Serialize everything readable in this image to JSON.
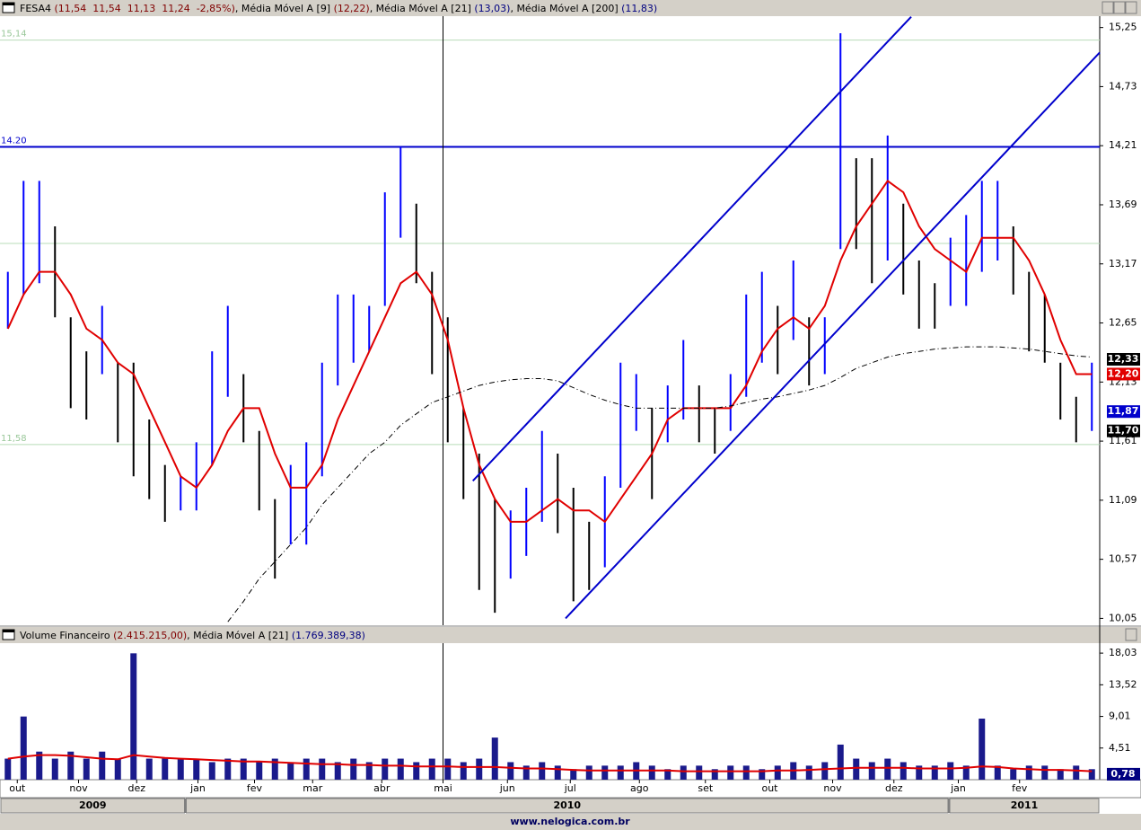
{
  "chart_data": [
    {
      "type": "ohlc",
      "header": [
        {
          "text": "FESA4 ",
          "color": "#000000"
        },
        {
          "text": "(11,54  11,54  11,13  11,24  -2,85%)",
          "color": "#800000"
        },
        {
          "text": ", Média Móvel A [9] ",
          "color": "#000000"
        },
        {
          "text": "(12,22)",
          "color": "#800000"
        },
        {
          "text": ", Média Móvel A [21] ",
          "color": "#000000"
        },
        {
          "text": "(13,03)",
          "color": "#000080"
        },
        {
          "text": ", Média Móvel A [200] ",
          "color": "#000000"
        },
        {
          "text": "(11,83)",
          "color": "#000080"
        }
      ],
      "xlim": [
        0,
        70
      ],
      "ylim": [
        9.99,
        15.35
      ],
      "yticks": [
        {
          "value": 10.05,
          "label": "10,05"
        },
        {
          "value": 10.57,
          "label": "10,57"
        },
        {
          "value": 11.09,
          "label": "11,09"
        },
        {
          "value": 11.61,
          "label": "11,61"
        },
        {
          "value": 12.13,
          "label": "12,13"
        },
        {
          "value": 12.65,
          "label": "12,65"
        },
        {
          "value": 13.17,
          "label": "13,17"
        },
        {
          "value": 13.69,
          "label": "13,69"
        },
        {
          "value": 14.21,
          "label": "14,21"
        },
        {
          "value": 14.73,
          "label": "14,73"
        },
        {
          "value": 15.25,
          "label": "15,25"
        }
      ],
      "high": [
        13.1,
        13.9,
        13.9,
        13.5,
        12.7,
        12.4,
        12.8,
        12.3,
        12.3,
        11.8,
        11.4,
        11.3,
        11.6,
        12.4,
        12.8,
        12.2,
        11.7,
        11.1,
        11.4,
        11.6,
        12.3,
        12.9,
        12.9,
        12.8,
        13.8,
        14.2,
        13.7,
        13.1,
        12.7,
        11.9,
        11.5,
        11.1,
        11.0,
        11.2,
        11.7,
        11.5,
        11.2,
        10.9,
        11.3,
        12.3,
        12.2,
        11.9,
        12.1,
        12.5,
        12.1,
        11.9,
        12.2,
        12.9,
        13.1,
        12.8,
        13.2,
        12.7,
        12.7,
        15.2,
        14.1,
        14.1,
        14.3,
        13.7,
        13.2,
        13.0,
        13.4,
        13.6,
        13.9,
        13.9,
        13.5,
        13.1,
        12.9,
        12.3,
        12.0,
        12.3
      ],
      "low": [
        12.6,
        12.9,
        13.0,
        12.7,
        11.9,
        11.8,
        12.2,
        11.6,
        11.3,
        11.1,
        10.9,
        11.0,
        11.0,
        11.4,
        12.0,
        11.6,
        11.0,
        10.4,
        10.7,
        10.7,
        11.3,
        12.1,
        12.3,
        12.4,
        12.8,
        13.4,
        13.0,
        12.2,
        11.6,
        11.1,
        10.3,
        10.1,
        10.4,
        10.6,
        10.9,
        10.8,
        10.2,
        10.3,
        10.5,
        11.2,
        11.7,
        11.1,
        11.6,
        11.8,
        11.6,
        11.5,
        11.7,
        12.0,
        12.3,
        12.2,
        12.5,
        12.1,
        12.2,
        13.3,
        13.3,
        13.0,
        13.2,
        12.9,
        12.6,
        12.6,
        12.8,
        12.8,
        13.1,
        13.2,
        12.9,
        12.4,
        12.3,
        11.8,
        11.6,
        11.7
      ],
      "up_color": "#0000ff",
      "down_color": "#000000",
      "series": [
        {
          "color": "#e00000",
          "values": [
            12.6,
            12.9,
            13.1,
            13.1,
            12.9,
            12.6,
            12.5,
            12.3,
            12.2,
            11.9,
            11.6,
            11.3,
            11.2,
            11.4,
            11.7,
            11.9,
            11.9,
            11.5,
            11.2,
            11.2,
            11.4,
            11.8,
            12.1,
            12.4,
            12.7,
            13.0,
            13.1,
            12.9,
            12.5,
            11.9,
            11.4,
            11.1,
            10.9,
            10.9,
            11.0,
            11.1,
            11.0,
            11.0,
            10.9,
            11.1,
            11.3,
            11.5,
            11.8,
            11.9,
            11.9,
            11.9,
            11.9,
            12.1,
            12.4,
            12.6,
            12.7,
            12.6,
            12.8,
            13.2,
            13.5,
            13.7,
            13.9,
            13.8,
            13.5,
            13.3,
            13.2,
            13.1,
            13.4,
            13.4,
            13.4,
            13.2,
            12.9,
            12.5,
            12.2,
            12.2
          ]
        },
        {
          "color": "#000000",
          "dashed": true,
          "values": [
            null,
            null,
            null,
            null,
            null,
            null,
            null,
            null,
            null,
            null,
            null,
            null,
            null,
            null,
            10.02,
            10.2,
            10.4,
            10.55,
            10.7,
            10.85,
            11.05,
            11.2,
            11.35,
            11.5,
            11.6,
            11.75,
            11.85,
            11.95,
            12.0,
            12.05,
            12.1,
            12.13,
            12.15,
            12.16,
            12.16,
            12.14,
            12.08,
            12.02,
            11.97,
            11.93,
            11.9,
            11.9,
            11.9,
            11.9,
            11.9,
            11.9,
            11.92,
            11.95,
            11.98,
            12.0,
            12.03,
            12.06,
            12.1,
            12.17,
            12.25,
            12.3,
            12.35,
            12.38,
            12.4,
            12.42,
            12.43,
            12.44,
            12.44,
            12.44,
            12.43,
            12.42,
            12.4,
            12.38,
            12.36,
            12.35
          ]
        }
      ],
      "reference_lines": [
        {
          "value": 15.14,
          "label": "15,14",
          "color": "#b8dcb8"
        },
        {
          "value": 14.2,
          "label": "14.20",
          "color": "#0000cc"
        },
        {
          "value": 13.35,
          "color": "#b8dcb8"
        },
        {
          "value": 11.58,
          "label": "11,58",
          "color": "#b8dcb8"
        }
      ],
      "trend_lines": [
        {
          "x": [
            30.1,
            58
          ],
          "y": [
            11.26,
            15.345
          ],
          "color": "#0000cc"
        },
        {
          "x": [
            36,
            70
          ],
          "y": [
            10.05,
            15.03
          ],
          "color": "#0000cc"
        }
      ],
      "cursor_x": 28.2,
      "price_tags": [
        {
          "value": 12.33,
          "label": "12,33",
          "color": "#000000"
        },
        {
          "value": 12.2,
          "label": "12,20",
          "color": "#e00000"
        },
        {
          "value": 11.87,
          "label": "11,87",
          "color": "#0000cc"
        },
        {
          "value": 11.7,
          "label": "11,70",
          "color": "#000000"
        }
      ]
    },
    {
      "type": "volume",
      "header": [
        {
          "text": "Volume Financeiro ",
          "color": "#000000"
        },
        {
          "text": "(2.415.215,00)",
          "color": "#800000"
        },
        {
          "text": ", Média Móvel A [21] ",
          "color": "#000000"
        },
        {
          "text": "(1.769.389,38)",
          "color": "#000080"
        }
      ],
      "xlim": [
        0,
        70
      ],
      "ylim": [
        0,
        19.45
      ],
      "yticks": [
        {
          "value": 4.51,
          "label": "4,51"
        },
        {
          "value": 9.01,
          "label": "9,01"
        },
        {
          "value": 13.52,
          "label": "13,52"
        },
        {
          "value": 18.03,
          "label": "18,03"
        }
      ],
      "values": [
        3,
        9,
        4,
        3,
        4,
        3,
        4,
        3,
        18,
        3,
        3,
        3,
        3,
        2.5,
        3,
        3,
        2.5,
        3,
        2.5,
        3,
        3,
        2.5,
        3,
        2.5,
        3,
        3,
        2.5,
        3,
        3,
        2.5,
        3,
        6,
        2.5,
        2,
        2.5,
        2,
        1.5,
        2,
        2,
        2,
        2.5,
        2,
        1.5,
        2,
        2,
        1.5,
        2,
        2,
        1.5,
        2,
        2.5,
        2,
        2.5,
        5,
        3,
        2.5,
        3,
        2.5,
        2,
        2,
        2.5,
        2,
        8.7,
        2,
        1.5,
        2,
        2,
        1.5,
        2,
        1.5
      ],
      "color": "#1a1a8c",
      "series": [
        {
          "color": "#e00000",
          "values": [
            3.0,
            3.3,
            3.5,
            3.5,
            3.4,
            3.2,
            3.0,
            2.9,
            3.5,
            3.3,
            3.1,
            3.0,
            2.9,
            2.8,
            2.7,
            2.6,
            2.6,
            2.5,
            2.4,
            2.3,
            2.2,
            2.2,
            2.1,
            2.1,
            2.0,
            2.0,
            1.9,
            1.9,
            1.9,
            1.8,
            1.8,
            1.8,
            1.7,
            1.6,
            1.6,
            1.5,
            1.4,
            1.3,
            1.3,
            1.3,
            1.3,
            1.3,
            1.3,
            1.2,
            1.2,
            1.2,
            1.2,
            1.2,
            1.2,
            1.3,
            1.3,
            1.4,
            1.5,
            1.6,
            1.7,
            1.7,
            1.7,
            1.7,
            1.6,
            1.6,
            1.6,
            1.7,
            1.9,
            1.8,
            1.6,
            1.5,
            1.4,
            1.4,
            1.3,
            1.2
          ]
        }
      ],
      "cursor_x": 28.2,
      "price_tags": [
        {
          "value": 0.78,
          "label": "0,78",
          "color": "#000080"
        }
      ],
      "xticks": [
        {
          "value": 1.1,
          "label": "out"
        },
        {
          "value": 5.0,
          "label": "nov"
        },
        {
          "value": 8.7,
          "label": "dez"
        },
        {
          "value": 12.6,
          "label": "jan"
        },
        {
          "value": 16.2,
          "label": "fev"
        },
        {
          "value": 19.9,
          "label": "mar"
        },
        {
          "value": 24.3,
          "label": "abr"
        },
        {
          "value": 28.2,
          "label": "mai"
        },
        {
          "value": 32.3,
          "label": "jun"
        },
        {
          "value": 36.3,
          "label": "jul"
        },
        {
          "value": 40.7,
          "label": "ago"
        },
        {
          "value": 44.9,
          "label": "set"
        },
        {
          "value": 49.0,
          "label": "out"
        },
        {
          "value": 53.0,
          "label": "nov"
        },
        {
          "value": 56.9,
          "label": "dez"
        },
        {
          "value": 61.0,
          "label": "jan"
        },
        {
          "value": 64.9,
          "label": "fev"
        }
      ],
      "years": [
        "2009",
        "2010",
        "2011"
      ],
      "year_breaks": [
        11.8,
        60.4
      ]
    }
  ],
  "footer": "www.nelogica.com.br"
}
